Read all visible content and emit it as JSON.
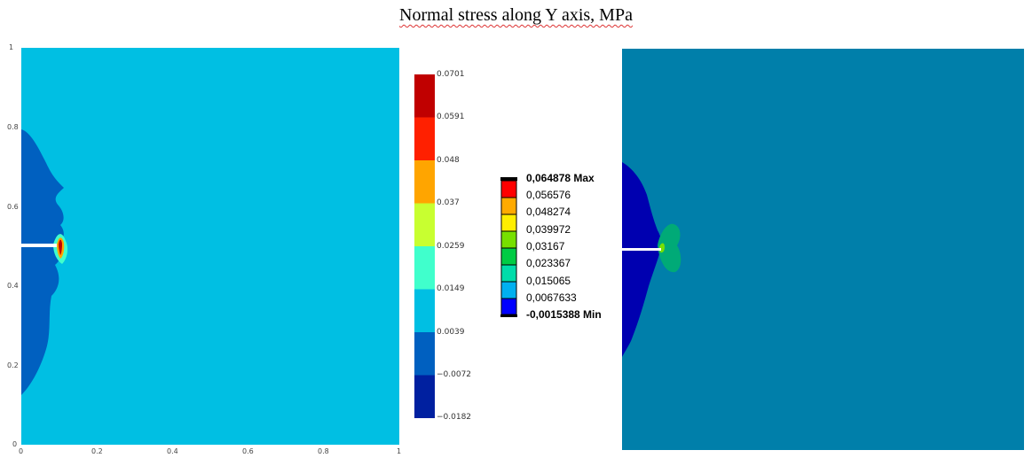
{
  "title": "Normal stress along Y axis, MPa",
  "left_plot": {
    "x_ticks": [
      "0",
      "0.2",
      "0.4",
      "0.6",
      "0.8",
      "1"
    ],
    "y_ticks": [
      "0",
      "0.2",
      "0.4",
      "0.6",
      "0.8",
      "1"
    ],
    "background_color": "#00BFE3",
    "colorbar": {
      "labels": [
        "0.0701",
        "0.0591",
        "0.048",
        "0.037",
        "0.0259",
        "0.0149",
        "0.0039",
        "−0.0072",
        "−0.0182"
      ],
      "colors": [
        "#C00000",
        "#FF2000",
        "#FFA500",
        "#C8FF30",
        "#40FFCC",
        "#00BFE3",
        "#0060C0",
        "#0020A0"
      ]
    }
  },
  "right_legend": {
    "labels": [
      "0,064878 Max",
      "0,056576",
      "0,048274",
      "0,039972",
      "0,03167",
      "0,023367",
      "0,015065",
      "0,0067633",
      "-0,0015388 Min"
    ],
    "colors": [
      "#FF0000",
      "#FFAA00",
      "#FFEE00",
      "#77E000",
      "#00CC44",
      "#00DDAA",
      "#00B0F0",
      "#0000FF"
    ]
  },
  "right_plot": {
    "background_color": "#007FAA",
    "low_region_color": "#0000B0"
  }
}
